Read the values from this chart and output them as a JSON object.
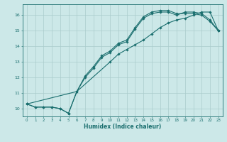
{
  "xlabel": "Humidex (Indice chaleur)",
  "background_color": "#cce8e8",
  "line_color": "#1a6e6e",
  "grid_color": "#aacccc",
  "xlim": [
    -0.5,
    23.5
  ],
  "ylim": [
    9.5,
    16.7
  ],
  "xticks": [
    0,
    1,
    2,
    3,
    4,
    5,
    6,
    7,
    8,
    9,
    10,
    11,
    12,
    13,
    14,
    15,
    16,
    17,
    18,
    19,
    20,
    21,
    22,
    23
  ],
  "yticks": [
    10,
    11,
    12,
    13,
    14,
    15,
    16
  ],
  "line1_x": [
    0,
    1,
    2,
    3,
    4,
    5,
    6,
    7,
    8,
    9,
    10,
    11,
    12,
    13,
    14,
    15,
    16,
    17,
    18,
    19,
    20,
    21,
    22,
    23
  ],
  "line1_y": [
    10.3,
    10.1,
    10.1,
    10.1,
    10.0,
    9.7,
    11.1,
    12.0,
    12.6,
    13.3,
    13.6,
    14.1,
    14.3,
    15.1,
    15.8,
    16.1,
    16.2,
    16.2,
    16.0,
    16.2,
    16.2,
    16.1,
    15.7,
    15.0
  ],
  "line2_x": [
    0,
    1,
    2,
    3,
    4,
    5,
    6,
    7,
    8,
    9,
    10,
    11,
    12,
    13,
    14,
    15,
    16,
    17,
    18,
    19,
    20,
    21,
    22,
    23
  ],
  "line2_y": [
    10.3,
    10.1,
    10.1,
    10.1,
    10.0,
    9.7,
    11.1,
    12.1,
    12.7,
    13.4,
    13.7,
    14.2,
    14.4,
    15.2,
    15.9,
    16.2,
    16.3,
    16.3,
    16.1,
    16.1,
    16.1,
    16.0,
    15.6,
    15.0
  ],
  "line3_x": [
    0,
    6,
    10,
    11,
    12,
    13,
    14,
    15,
    16,
    17,
    18,
    19,
    20,
    21,
    22,
    23
  ],
  "line3_y": [
    10.3,
    11.1,
    13.0,
    13.5,
    13.8,
    14.1,
    14.4,
    14.8,
    15.2,
    15.5,
    15.7,
    15.8,
    16.0,
    16.2,
    16.2,
    15.0
  ]
}
